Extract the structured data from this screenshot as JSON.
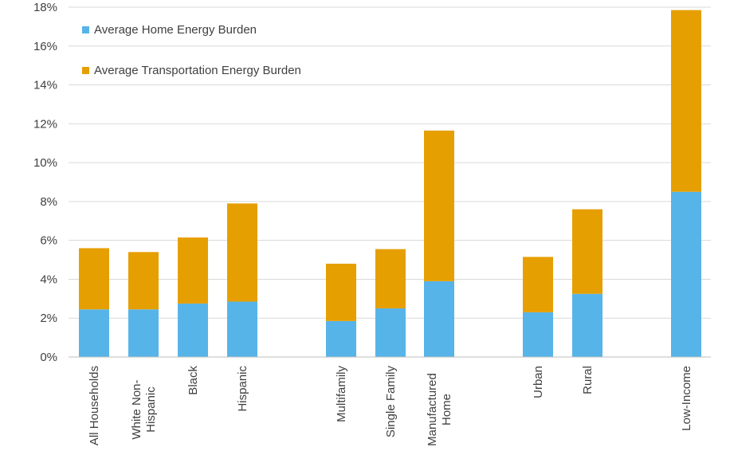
{
  "chart_data": {
    "type": "bar",
    "stacked": true,
    "categories": [
      [
        "All Households"
      ],
      [
        "White Non-",
        "Hispanic"
      ],
      [
        "Black"
      ],
      [
        "Hispanic"
      ],
      [
        "Multifamily"
      ],
      [
        "Single Family"
      ],
      [
        "Manufactured",
        "Home"
      ],
      [
        "Urban"
      ],
      [
        "Rural"
      ],
      [
        "Low-Income"
      ]
    ],
    "series": [
      {
        "name": "Average Home Energy Burden",
        "color": "#56b4e9",
        "values": [
          2.45,
          2.45,
          2.75,
          2.85,
          1.85,
          2.5,
          3.9,
          2.3,
          3.25,
          8.5
        ]
      },
      {
        "name": "Average Transportation Energy Burden",
        "color": "#e69f00",
        "values": [
          3.15,
          2.95,
          3.4,
          5.05,
          2.95,
          3.05,
          7.75,
          2.85,
          4.35,
          9.35
        ]
      }
    ],
    "y_ticks": [
      "0%",
      "2%",
      "4%",
      "6%",
      "8%",
      "10%",
      "12%",
      "14%",
      "16%",
      "18%"
    ],
    "ylim": [
      0,
      18
    ],
    "grid": true,
    "legend_position": "top-left"
  }
}
